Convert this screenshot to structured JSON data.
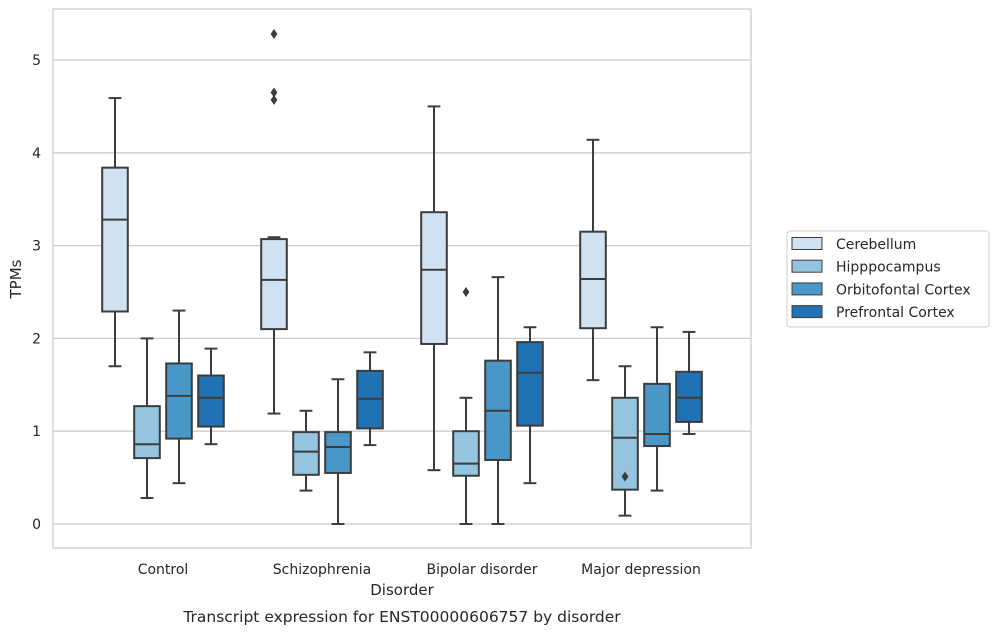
{
  "chart_data": {
    "type": "box",
    "caption": "Transcript expression for ENST00000606757 by disorder",
    "xlabel": "Disorder",
    "ylabel": "TPMs",
    "ylim": [
      -0.25,
      5.55
    ],
    "yticks": [
      0,
      1,
      2,
      3,
      4,
      5
    ],
    "grid": true,
    "legend_placement": "right",
    "categories": [
      "Control",
      "Schizophrenia",
      "Bipolar disorder",
      "Major depression"
    ],
    "series": [
      {
        "name": "Cerebellum",
        "color": "#d0e1f2",
        "boxes": [
          {
            "whisker_low": 1.7,
            "q1": 2.29,
            "median": 3.28,
            "q3": 3.84,
            "whisker_high": 4.59,
            "outliers": []
          },
          {
            "whisker_low": 1.19,
            "q1": 2.1,
            "median": 2.63,
            "q3": 3.07,
            "whisker_high": 3.09,
            "outliers": [
              4.57,
              4.65,
              5.28
            ]
          },
          {
            "whisker_low": 0.58,
            "q1": 1.94,
            "median": 2.74,
            "q3": 3.36,
            "whisker_high": 4.5,
            "outliers": []
          },
          {
            "whisker_low": 1.55,
            "q1": 2.11,
            "median": 2.64,
            "q3": 3.15,
            "whisker_high": 4.14,
            "outliers": []
          }
        ]
      },
      {
        "name": "Hipppocampus",
        "color": "#94c4df",
        "boxes": [
          {
            "whisker_low": 0.28,
            "q1": 0.71,
            "median": 0.86,
            "q3": 1.27,
            "whisker_high": 2.0,
            "outliers": []
          },
          {
            "whisker_low": 0.36,
            "q1": 0.53,
            "median": 0.78,
            "q3": 0.99,
            "whisker_high": 1.22,
            "outliers": []
          },
          {
            "whisker_low": 0.0,
            "q1": 0.52,
            "median": 0.65,
            "q3": 1.0,
            "whisker_high": 1.36,
            "outliers": [
              2.5
            ]
          },
          {
            "whisker_low": 0.09,
            "q1": 0.37,
            "median": 0.93,
            "q3": 1.36,
            "whisker_high": 1.7,
            "outliers": [
              0.51
            ]
          }
        ]
      },
      {
        "name": "Orbitofontal Cortex",
        "color": "#4a98c9",
        "boxes": [
          {
            "whisker_low": 0.44,
            "q1": 0.92,
            "median": 1.38,
            "q3": 1.73,
            "whisker_high": 2.3,
            "outliers": []
          },
          {
            "whisker_low": 0.0,
            "q1": 0.55,
            "median": 0.83,
            "q3": 0.99,
            "whisker_high": 1.56,
            "outliers": []
          },
          {
            "whisker_low": 0.0,
            "q1": 0.69,
            "median": 1.22,
            "q3": 1.76,
            "whisker_high": 2.66,
            "outliers": []
          },
          {
            "whisker_low": 0.36,
            "q1": 0.84,
            "median": 0.97,
            "q3": 1.51,
            "whisker_high": 2.12,
            "outliers": []
          }
        ]
      },
      {
        "name": "Prefrontal Cortex",
        "color": "#2171b5",
        "boxes": [
          {
            "whisker_low": 0.86,
            "q1": 1.05,
            "median": 1.36,
            "q3": 1.6,
            "whisker_high": 1.89,
            "outliers": []
          },
          {
            "whisker_low": 0.85,
            "q1": 1.03,
            "median": 1.35,
            "q3": 1.65,
            "whisker_high": 1.85,
            "outliers": []
          },
          {
            "whisker_low": 0.44,
            "q1": 1.06,
            "median": 1.63,
            "q3": 1.96,
            "whisker_high": 2.12,
            "outliers": []
          },
          {
            "whisker_low": 0.97,
            "q1": 1.1,
            "median": 1.36,
            "q3": 1.64,
            "whisker_high": 2.07,
            "outliers": []
          }
        ]
      }
    ]
  }
}
